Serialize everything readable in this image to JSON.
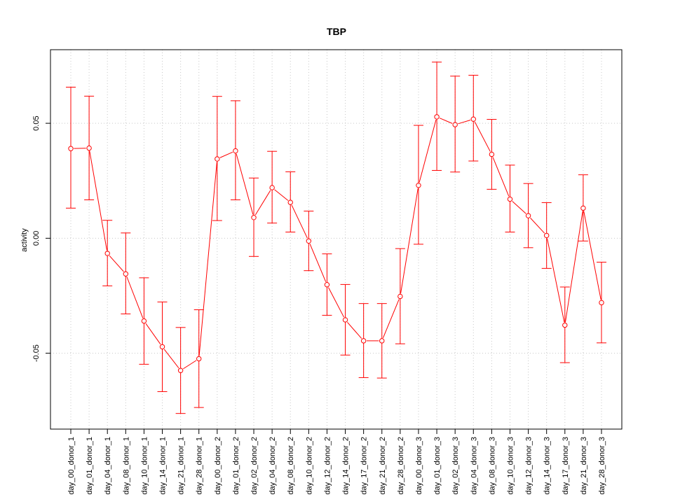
{
  "chart_data": {
    "type": "line",
    "title": "TBP",
    "xlabel": "",
    "ylabel": "activity",
    "ylim": [
      -0.083,
      0.082
    ],
    "yticks": [
      -0.05,
      0.0,
      0.05
    ],
    "ytick_labels": [
      "-0.05",
      "0.00",
      "0.05"
    ],
    "grid": true,
    "colors": {
      "series": "#ff0000",
      "grid": "#c8c8c8",
      "axis": "#000000"
    },
    "categories": [
      "day_00_donor_1",
      "day_01_donor_1",
      "day_04_donor_1",
      "day_08_donor_1",
      "day_10_donor_1",
      "day_14_donor_1",
      "day_21_donor_1",
      "day_28_donor_1",
      "day_00_donor_2",
      "day_01_donor_2",
      "day_02_donor_2",
      "day_04_donor_2",
      "day_08_donor_2",
      "day_10_donor_2",
      "day_12_donor_2",
      "day_14_donor_2",
      "day_17_donor_2",
      "day_21_donor_2",
      "day_28_donor_2",
      "day_00_donor_3",
      "day_01_donor_3",
      "day_02_donor_3",
      "day_04_donor_3",
      "day_08_donor_3",
      "day_10_donor_3",
      "day_12_donor_3",
      "day_14_donor_3",
      "day_17_donor_3",
      "day_21_donor_3",
      "day_28_donor_3"
    ],
    "series": [
      {
        "values": [
          0.039,
          0.0392,
          -0.0066,
          -0.0155,
          -0.036,
          -0.0472,
          -0.0575,
          -0.0524,
          0.0345,
          0.038,
          0.009,
          0.022,
          0.0156,
          -0.0012,
          -0.0202,
          -0.0355,
          -0.0446,
          -0.0446,
          -0.0253,
          0.023,
          0.0528,
          0.0494,
          0.0518,
          0.0365,
          0.017,
          0.0098,
          0.0012,
          -0.0378,
          0.0131,
          -0.028
        ],
        "upper": [
          0.0657,
          0.0618,
          0.0078,
          0.0023,
          -0.0172,
          -0.0277,
          -0.0388,
          -0.0311,
          0.0617,
          0.0598,
          0.0262,
          0.0378,
          0.0289,
          0.0118,
          -0.0068,
          -0.0201,
          -0.0284,
          -0.0284,
          -0.0045,
          0.0491,
          0.0766,
          0.0705,
          0.0709,
          0.0517,
          0.0318,
          0.0238,
          0.0155,
          -0.0212,
          0.0276,
          -0.0104
        ],
        "lower": [
          0.0131,
          0.0167,
          -0.0207,
          -0.0329,
          -0.0548,
          -0.0667,
          -0.0762,
          -0.0736,
          0.0077,
          0.0167,
          -0.0079,
          0.0066,
          0.0027,
          -0.0141,
          -0.0335,
          -0.0508,
          -0.0606,
          -0.0608,
          -0.0459,
          -0.0026,
          0.0295,
          0.0288,
          0.0336,
          0.0213,
          0.0027,
          -0.0041,
          -0.0131,
          -0.0541,
          -0.0012,
          -0.0455
        ]
      }
    ]
  }
}
